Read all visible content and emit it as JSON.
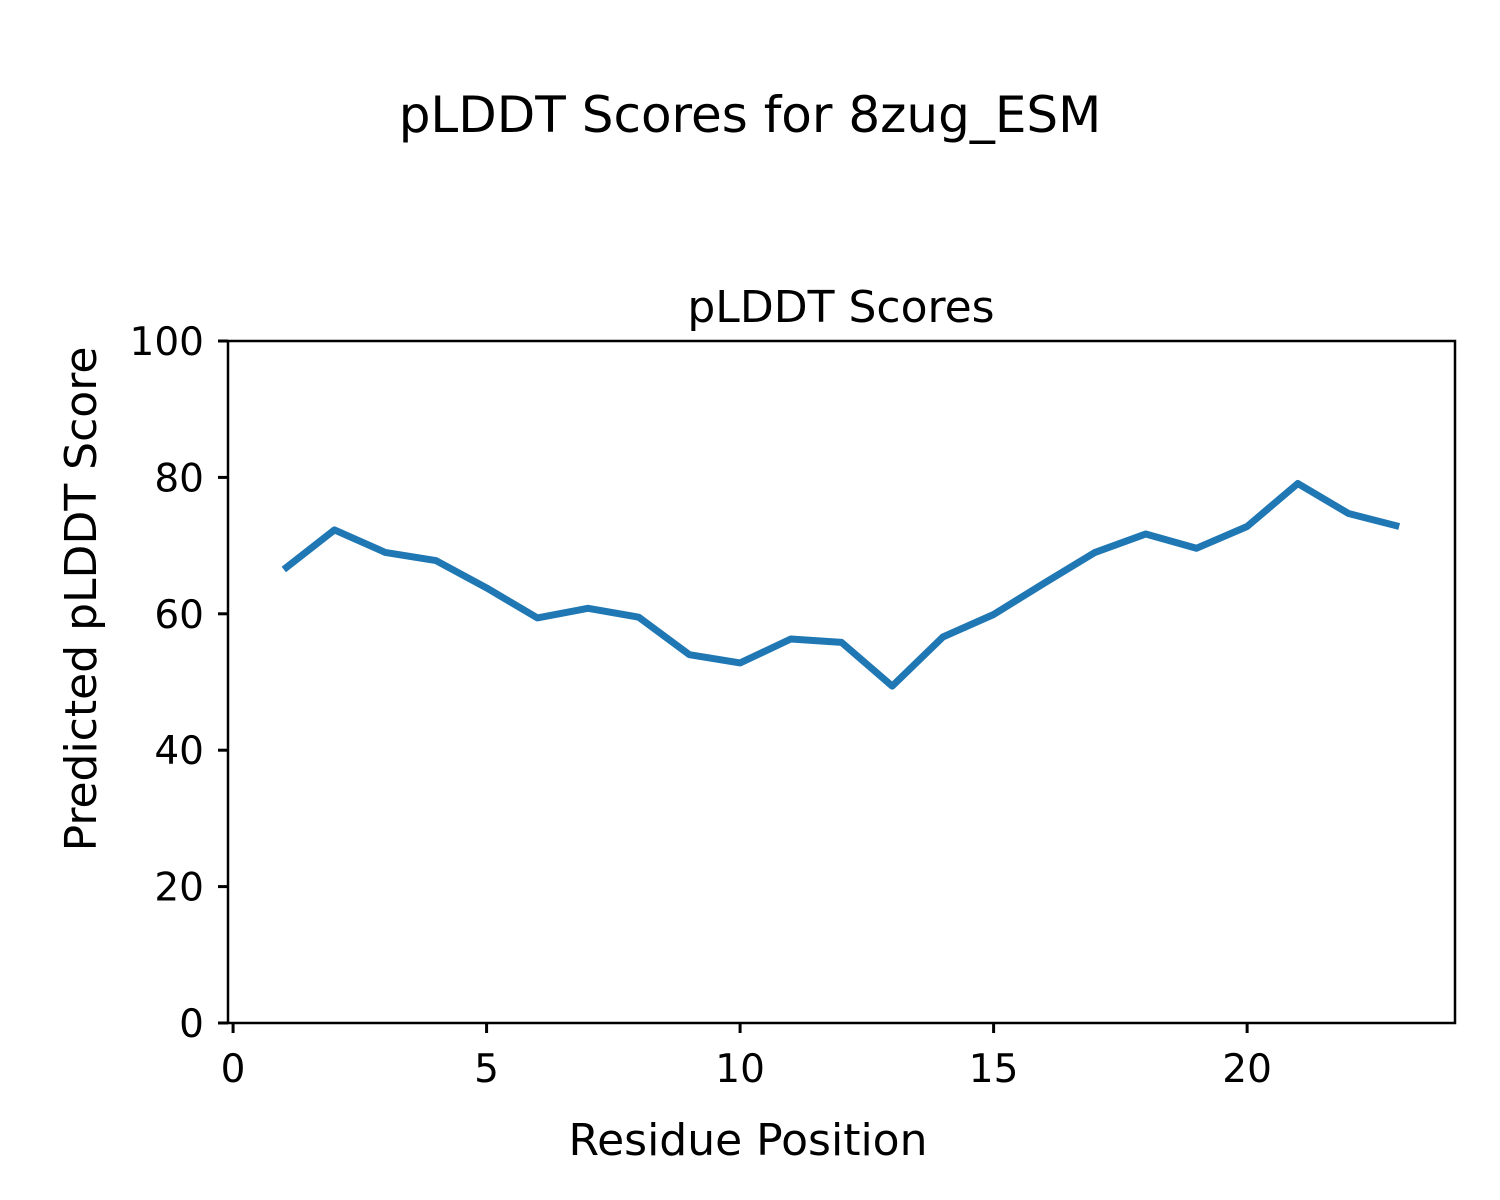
{
  "figure": {
    "suptitle": "pLDDT Scores for 8zug_ESM",
    "background_color": "#ffffff",
    "text_color": "#000000"
  },
  "chart_data": {
    "type": "line",
    "title": "pLDDT Scores",
    "xlabel": "Residue Position",
    "ylabel": "Predicted pLDDT Score",
    "x": [
      1,
      2,
      3,
      4,
      5,
      6,
      7,
      8,
      9,
      10,
      11,
      12,
      13,
      14,
      15,
      16,
      17,
      18,
      19,
      20,
      21,
      22,
      23
    ],
    "y": [
      66.5,
      72.3,
      69.0,
      67.8,
      63.8,
      59.4,
      60.8,
      59.5,
      54.0,
      52.8,
      56.3,
      55.8,
      49.4,
      56.6,
      59.9,
      64.5,
      69.0,
      71.7,
      69.6,
      72.8,
      79.1,
      74.7,
      72.8
    ],
    "xlim": [
      -0.1,
      24.1
    ],
    "ylim": [
      0,
      100
    ],
    "xticks": [
      0,
      5,
      10,
      15,
      20
    ],
    "yticks": [
      0,
      20,
      40,
      60,
      80,
      100
    ],
    "line_color": "#1f77b4",
    "axis_color": "#000000",
    "grid": false,
    "legend": "none"
  }
}
